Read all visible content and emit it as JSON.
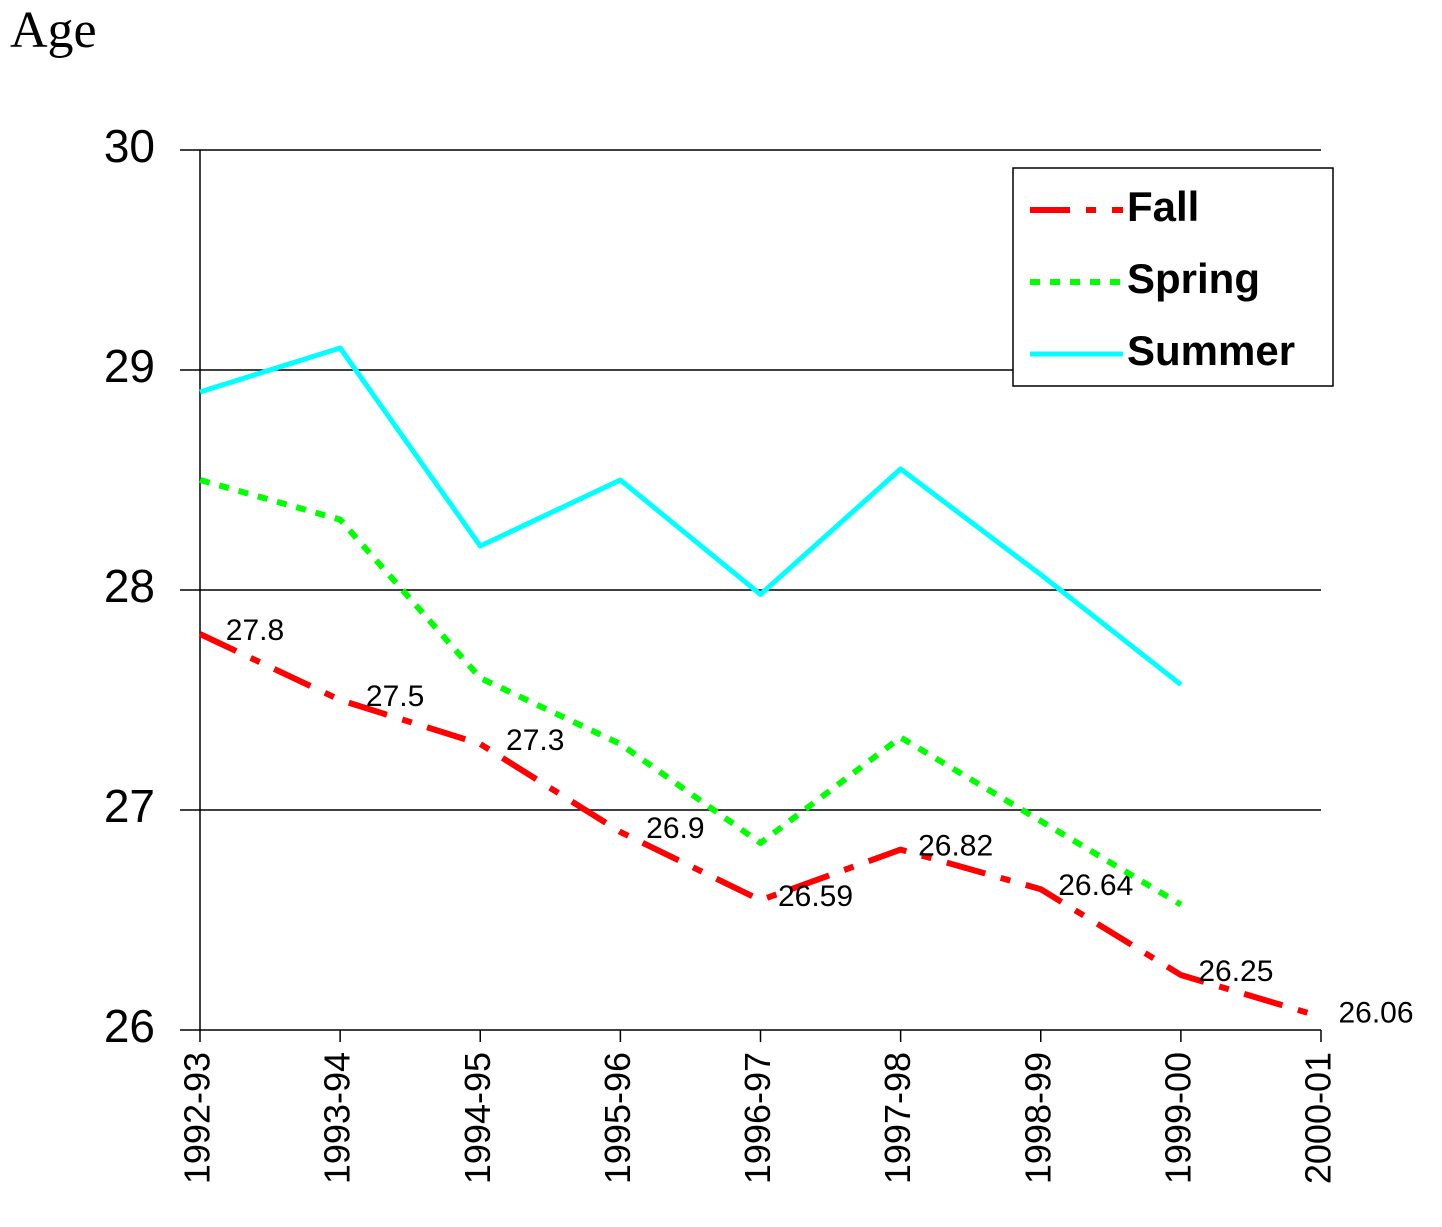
{
  "chart_data": {
    "type": "line",
    "title": "Age",
    "categories": [
      "1992-93",
      "1993-94",
      "1994-95",
      "1995-96",
      "1996-97",
      "1997-98",
      "1998-99",
      "1999-00",
      "2000-01"
    ],
    "series": [
      {
        "name": "Fall",
        "color": "#ff0000",
        "dash": "dash-dot",
        "values": [
          27.8,
          27.5,
          27.3,
          26.9,
          26.59,
          26.82,
          26.64,
          26.25,
          26.06
        ],
        "show_labels": true
      },
      {
        "name": "Spring",
        "color": "#00ff00",
        "dash": "dot",
        "values": [
          28.5,
          28.32,
          27.6,
          27.3,
          26.85,
          27.33,
          26.95,
          26.57,
          null
        ]
      },
      {
        "name": "Summer",
        "color": "#00ffff",
        "dash": "solid",
        "values": [
          28.9,
          29.1,
          28.2,
          28.5,
          27.98,
          28.55,
          28.07,
          27.57,
          null
        ]
      }
    ],
    "ylim": [
      26,
      30
    ],
    "yticks": [
      26,
      27,
      28,
      29,
      30
    ],
    "grid": true,
    "legend": "upper right"
  }
}
